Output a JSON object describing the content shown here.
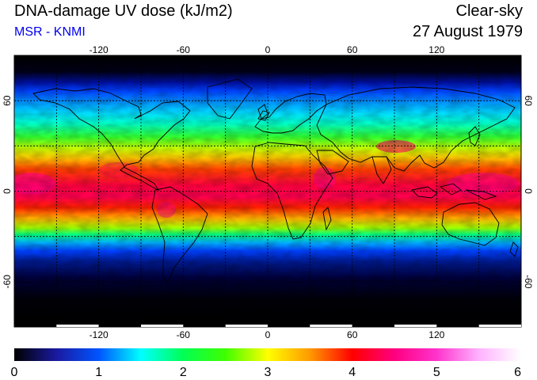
{
  "header": {
    "title": "DNA-damage UV dose (kJ/m2)",
    "source": "MSR - KNMI",
    "condition": "Clear-sky",
    "date": "27 August 1979"
  },
  "colors": {
    "source_text": "#0000ee",
    "ocean_dark": "#000000",
    "coastline": "#000000",
    "grid": "#000000"
  },
  "map": {
    "projection": "equirectangular",
    "lon_range": [
      -180,
      180
    ],
    "lat_range": [
      -90,
      90
    ],
    "lon_ticks": [
      "-120",
      "-60",
      "0",
      "60",
      "120"
    ],
    "lat_ticks": [
      "60",
      "0",
      "-60"
    ],
    "grid_lon": [
      -150,
      -120,
      -90,
      -60,
      -30,
      0,
      30,
      60,
      90,
      120,
      150
    ],
    "grid_lat": [
      -60,
      -30,
      0,
      30,
      60
    ]
  },
  "colorbar": {
    "min": 0,
    "max": 6,
    "tick_labels": [
      "0",
      "1",
      "2",
      "3",
      "4",
      "5",
      "6"
    ],
    "stops": [
      "#000000",
      "#1a1aa0",
      "#0055ff",
      "#00ffff",
      "#00ff55",
      "#40ff00",
      "#ffff00",
      "#ff9900",
      "#ff0000",
      "#ff0080",
      "#ff33cc",
      "#ffb3ff",
      "#ffffff"
    ]
  }
}
